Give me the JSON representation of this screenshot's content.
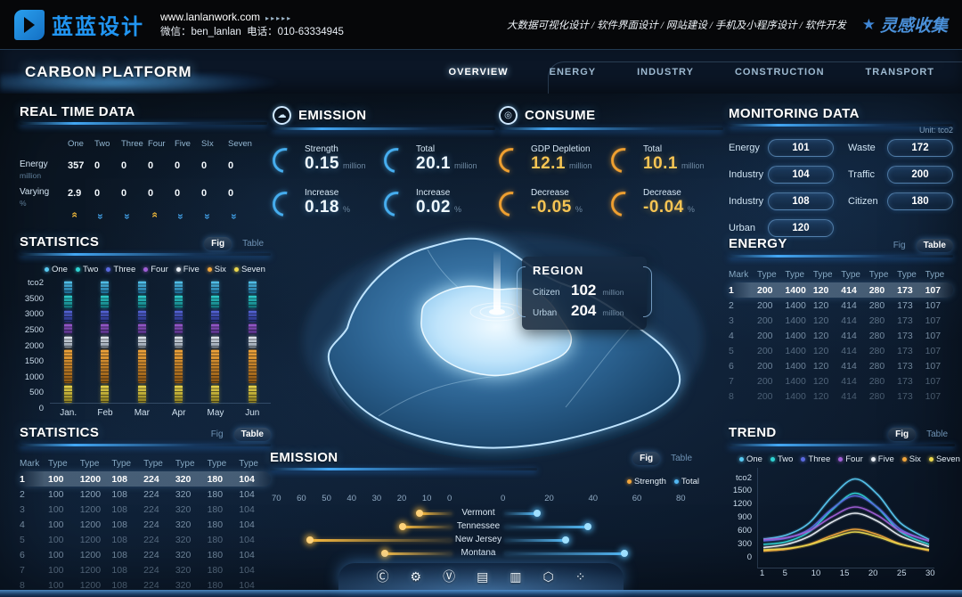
{
  "brand": {
    "logo_text": "蓝蓝设计",
    "website": "www.lanlanwork.com",
    "website_arrows": "▸▸▸▸▸",
    "wechat": "微信：ben_lanlan",
    "phone": "电话：010-63334945",
    "services": "大数据可视化设计 / 软件界面设计 / 网站建设 / 手机及小程序设计 / 软件开发",
    "collect": "灵感收集"
  },
  "nav": {
    "title": "CARBON PLATFORM",
    "tabs": [
      {
        "label": "OVERVIEW",
        "active": true
      },
      {
        "label": "ENERGY",
        "active": false
      },
      {
        "label": "INDUSTRY",
        "active": false
      },
      {
        "label": "CONSTRUCTION",
        "active": false
      },
      {
        "label": "TRANSPORT",
        "active": false
      }
    ]
  },
  "toggle_labels": {
    "fig": "Fig",
    "table": "Table"
  },
  "real_time": {
    "title": "REAL TIME DATA",
    "columns": [
      "One",
      "Two",
      "Three",
      "Four",
      "Five",
      "SIx",
      "Seven"
    ],
    "rows": [
      {
        "label": "Energy",
        "unit": "million",
        "values": [
          "357",
          "0",
          "0",
          "0",
          "0",
          "0",
          "0"
        ]
      },
      {
        "label": "Varying",
        "unit": "%",
        "values": [
          "2.9",
          "0",
          "0",
          "0",
          "0",
          "0",
          "0"
        ]
      }
    ],
    "trends": [
      "up",
      "down",
      "down",
      "up",
      "down",
      "down",
      "down"
    ]
  },
  "emission_panel": {
    "title": "EMISSION",
    "icon_glyph": "☁",
    "stats": [
      {
        "label": "Strength",
        "value": "0.15",
        "unit": "million"
      },
      {
        "label": "Total",
        "value": "20.1",
        "unit": "million"
      },
      {
        "label": "Increase",
        "value": "0.18",
        "unit": "%"
      },
      {
        "label": "Increase",
        "value": "0.02",
        "unit": "%"
      }
    ]
  },
  "consume_panel": {
    "title": "CONSUME",
    "icon_glyph": "◎",
    "stats": [
      {
        "label": "GDP Depletion",
        "value": "12.1",
        "unit": "million"
      },
      {
        "label": "Total",
        "value": "10.1",
        "unit": "million"
      },
      {
        "label": "Decrease",
        "value": "-0.05",
        "unit": "%"
      },
      {
        "label": "Decrease",
        "value": "-0.04",
        "unit": "%"
      }
    ]
  },
  "monitoring": {
    "title": "MONITORING DATA",
    "unit_label": "Unit: tco2",
    "left": [
      {
        "label": "Energy",
        "value": "101"
      },
      {
        "label": "Industry",
        "value": "104"
      },
      {
        "label": "Industry",
        "value": "108"
      },
      {
        "label": "Urban",
        "value": "120"
      }
    ],
    "right": [
      {
        "label": "Waste",
        "value": "172"
      },
      {
        "label": "Traffic",
        "value": "200"
      },
      {
        "label": "Citizen",
        "value": "180"
      }
    ]
  },
  "series_legend": [
    {
      "name": "One",
      "color": "#58c9f2"
    },
    {
      "name": "Two",
      "color": "#2fd4d4"
    },
    {
      "name": "Three",
      "color": "#5a6ae0"
    },
    {
      "name": "Four",
      "color": "#a05fd6"
    },
    {
      "name": "Five",
      "color": "#e9eef4"
    },
    {
      "name": "Six",
      "color": "#f2a63c"
    },
    {
      "name": "Seven",
      "color": "#ecd84e"
    }
  ],
  "statistics_fig": {
    "title": "STATISTICS",
    "active_toggle": "fig",
    "chart_data": {
      "type": "stacked-bar",
      "categories": [
        "Jan.",
        "Feb",
        "Mar",
        "Apr",
        "May",
        "Jun"
      ],
      "ylabel": "tco2",
      "yticks": [
        0,
        500,
        1000,
        1500,
        2000,
        2500,
        3000,
        3500
      ],
      "ymax": 3500,
      "note": "segments identical for all six months, listed bottom to top",
      "series": [
        {
          "name": "Seven",
          "color": "#ecd84e",
          "color2": "#8a7b1e",
          "value": 500
        },
        {
          "name": "Six",
          "color": "#f2a63c",
          "color2": "#8a5412",
          "value": 950
        },
        {
          "name": "Five",
          "color": "#e9eef4",
          "color2": "#8a97a5",
          "value": 320
        },
        {
          "name": "Four",
          "color": "#a05fd6",
          "color2": "#4a2a78",
          "value": 300
        },
        {
          "name": "Three",
          "color": "#5a6ae0",
          "color2": "#232e78",
          "value": 330
        },
        {
          "name": "Two",
          "color": "#2fd4d4",
          "color2": "#0f6a70",
          "value": 380
        },
        {
          "name": "One",
          "color": "#58c9f2",
          "color2": "#1c6a94",
          "value": 350
        }
      ]
    }
  },
  "region_tooltip": {
    "title": "REGION",
    "rows": [
      {
        "label": "Citizen",
        "value": "102",
        "unit": "million"
      },
      {
        "label": "Urban",
        "value": "204",
        "unit": "million"
      }
    ]
  },
  "energy_table": {
    "title": "ENERGY",
    "active_toggle": "table",
    "headers": [
      "Mark",
      "Type",
      "Type",
      "Type",
      "Type",
      "Type",
      "Type",
      "Type"
    ],
    "rows": [
      {
        "mark": "1",
        "values": [
          "200",
          "1400",
          "120",
          "414",
          "280",
          "173",
          "107"
        ]
      },
      {
        "mark": "2",
        "values": [
          "200",
          "1400",
          "120",
          "414",
          "280",
          "173",
          "107"
        ]
      },
      {
        "mark": "3",
        "values": [
          "200",
          "1400",
          "120",
          "414",
          "280",
          "173",
          "107"
        ]
      },
      {
        "mark": "4",
        "values": [
          "200",
          "1400",
          "120",
          "414",
          "280",
          "173",
          "107"
        ]
      },
      {
        "mark": "5",
        "values": [
          "200",
          "1400",
          "120",
          "414",
          "280",
          "173",
          "107"
        ]
      },
      {
        "mark": "6",
        "values": [
          "200",
          "1400",
          "120",
          "414",
          "280",
          "173",
          "107"
        ]
      },
      {
        "mark": "7",
        "values": [
          "200",
          "1400",
          "120",
          "414",
          "280",
          "173",
          "107"
        ]
      },
      {
        "mark": "8",
        "values": [
          "200",
          "1400",
          "120",
          "414",
          "280",
          "173",
          "107"
        ]
      }
    ]
  },
  "statistics_table": {
    "title": "STATISTICS",
    "active_toggle": "table",
    "headers": [
      "Mark",
      "Type",
      "Type",
      "Type",
      "Type",
      "Type",
      "Type",
      "Type"
    ],
    "rows": [
      {
        "mark": "1",
        "values": [
          "100",
          "1200",
          "108",
          "224",
          "320",
          "180",
          "104"
        ]
      },
      {
        "mark": "2",
        "values": [
          "100",
          "1200",
          "108",
          "224",
          "320",
          "180",
          "104"
        ]
      },
      {
        "mark": "3",
        "values": [
          "100",
          "1200",
          "108",
          "224",
          "320",
          "180",
          "104"
        ]
      },
      {
        "mark": "4",
        "values": [
          "100",
          "1200",
          "108",
          "224",
          "320",
          "180",
          "104"
        ]
      },
      {
        "mark": "5",
        "values": [
          "100",
          "1200",
          "108",
          "224",
          "320",
          "180",
          "104"
        ]
      },
      {
        "mark": "6",
        "values": [
          "100",
          "1200",
          "108",
          "224",
          "320",
          "180",
          "104"
        ]
      },
      {
        "mark": "7",
        "values": [
          "100",
          "1200",
          "108",
          "224",
          "320",
          "180",
          "104"
        ]
      },
      {
        "mark": "8",
        "values": [
          "100",
          "1200",
          "108",
          "224",
          "320",
          "180",
          "104"
        ]
      }
    ]
  },
  "emission_chart": {
    "title": "EMISSION",
    "active_toggle": "fig",
    "chart_data": {
      "type": "diverging-bar",
      "categories": [
        "Vermont",
        "Tennessee",
        "New Jersey",
        "Montana"
      ],
      "series": [
        {
          "name": "Strength",
          "color": "#f2a63c",
          "side": "left",
          "values": [
            13,
            20,
            57,
            27
          ]
        },
        {
          "name": "Total",
          "color": "#53b7f2",
          "side": "right",
          "values": [
            15,
            38,
            28,
            55
          ]
        }
      ],
      "left_ticks": [
        70,
        60,
        50,
        40,
        30,
        20,
        10,
        0
      ],
      "right_ticks": [
        0,
        20,
        40,
        60,
        80
      ]
    }
  },
  "trend": {
    "title": "TREND",
    "active_toggle": "fig",
    "chart_data": {
      "type": "line",
      "x": [
        1,
        5,
        9,
        13,
        17,
        21,
        25,
        30
      ],
      "xticks": [
        1,
        5,
        10,
        15,
        20,
        25,
        30
      ],
      "ylabel": "tco2",
      "yticks": [
        0,
        300,
        600,
        900,
        1200,
        1500
      ],
      "ymax": 1500,
      "series": [
        {
          "name": "One",
          "color": "#58c9f2",
          "values": [
            400,
            490,
            760,
            1350,
            1750,
            1400,
            760,
            390
          ]
        },
        {
          "name": "Two",
          "color": "#2fd4d4",
          "values": [
            280,
            340,
            560,
            1050,
            1430,
            1100,
            560,
            280
          ]
        },
        {
          "name": "Three",
          "color": "#5a6ae0",
          "values": [
            360,
            420,
            620,
            1080,
            1370,
            1110,
            620,
            350
          ]
        },
        {
          "name": "Four",
          "color": "#a05fd6",
          "values": [
            390,
            430,
            580,
            900,
            1120,
            930,
            580,
            360
          ]
        },
        {
          "name": "Five",
          "color": "#e9eef4",
          "values": [
            210,
            280,
            460,
            780,
            980,
            800,
            470,
            230
          ]
        },
        {
          "name": "Six",
          "color": "#f2a63c",
          "values": [
            130,
            170,
            280,
            480,
            620,
            500,
            290,
            140
          ]
        },
        {
          "name": "Seven",
          "color": "#ecd84e",
          "values": [
            160,
            190,
            270,
            430,
            560,
            450,
            280,
            160
          ]
        }
      ]
    }
  },
  "dock": {
    "icons": [
      {
        "name": "badge-c-icon",
        "glyph": "Ⓒ"
      },
      {
        "name": "gear-icon",
        "glyph": "⚙"
      },
      {
        "name": "v-circle-icon",
        "glyph": "Ⓥ"
      },
      {
        "name": "charging-station-icon",
        "glyph": "▤"
      },
      {
        "name": "board-chart-icon",
        "glyph": "▥"
      },
      {
        "name": "nut-icon",
        "glyph": "⬡"
      },
      {
        "name": "apps-grid-icon",
        "glyph": "⁘"
      }
    ]
  }
}
